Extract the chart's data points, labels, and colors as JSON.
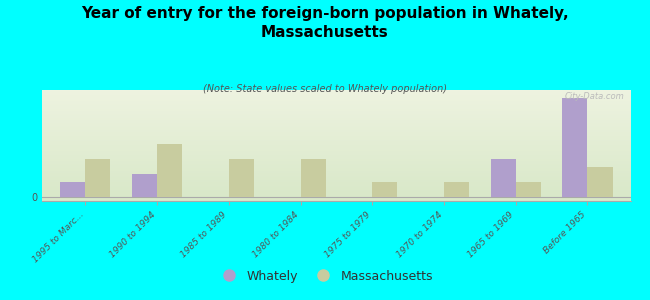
{
  "title": "Year of entry for the foreign-born population in Whately,\nMassachusetts",
  "subtitle": "(Note: State values scaled to Whately population)",
  "categories": [
    "1995 to Marc...",
    "1990 to 1994",
    "1985 to 1989",
    "1980 to 1984",
    "1975 to 1979",
    "1970 to 1974",
    "1965 to 1969",
    "Before 1965"
  ],
  "whately_values": [
    2,
    3,
    0,
    0,
    0,
    0,
    5,
    13
  ],
  "massachusetts_values": [
    5,
    7,
    5,
    5,
    2,
    2,
    2,
    4
  ],
  "whately_color": "#b09fcc",
  "massachusetts_color": "#c8cc9f",
  "background_color": "#00FFFF",
  "watermark": "City-Data.com",
  "bar_width": 0.35,
  "figsize": [
    6.5,
    3.0
  ],
  "dpi": 100,
  "ylim_max": 14
}
